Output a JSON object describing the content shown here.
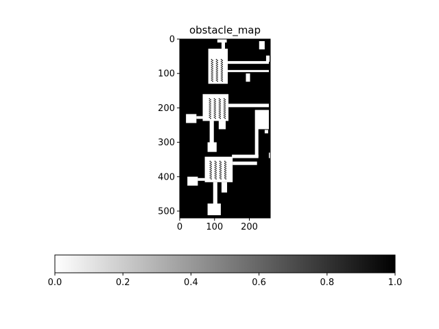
{
  "chart_data": {
    "type": "heatmap",
    "title": "obstacle_map",
    "xlabel": "",
    "ylabel": "",
    "xlim": [
      0,
      260
    ],
    "ylim": [
      520,
      0
    ],
    "x_ticks": [
      0,
      100,
      200
    ],
    "y_ticks": [
      0,
      100,
      200,
      300,
      400,
      500
    ],
    "x_tick_labels": [
      "0",
      "100",
      "200"
    ],
    "y_tick_labels": [
      "0",
      "100",
      "200",
      "300",
      "400",
      "500"
    ],
    "colormap": "gray_r",
    "background_value": 1.0,
    "free_space_value": 0.0,
    "free_regions": [
      {
        "x": [
          108,
          135
        ],
        "y": [
          0,
          10
        ]
      },
      {
        "x": [
          120,
          130
        ],
        "y": [
          10,
          28
        ]
      },
      {
        "x": [
          82,
          138
        ],
        "y": [
          28,
          130
        ]
      },
      {
        "x": [
          138,
          256
        ],
        "y": [
          64,
          72
        ]
      },
      {
        "x": [
          138,
          256
        ],
        "y": [
          90,
          96
        ]
      },
      {
        "x": [
          248,
          258
        ],
        "y": [
          48,
          66
        ]
      },
      {
        "x": [
          228,
          244
        ],
        "y": [
          6,
          30
        ]
      },
      {
        "x": [
          190,
          202
        ],
        "y": [
          100,
          124
        ]
      },
      {
        "x": [
          66,
          140
        ],
        "y": [
          160,
          238
        ]
      },
      {
        "x": [
          140,
          256
        ],
        "y": [
          188,
          198
        ]
      },
      {
        "x": [
          18,
          48
        ],
        "y": [
          218,
          244
        ]
      },
      {
        "x": [
          48,
          72
        ],
        "y": [
          224,
          232
        ]
      },
      {
        "x": [
          86,
          98
        ],
        "y": [
          238,
          312
        ]
      },
      {
        "x": [
          112,
          132
        ],
        "y": [
          238,
          262
        ]
      },
      {
        "x": [
          80,
          106
        ],
        "y": [
          300,
          328
        ]
      },
      {
        "x": [
          216,
          256
        ],
        "y": [
          206,
          262
        ]
      },
      {
        "x": [
          216,
          226
        ],
        "y": [
          262,
          342
        ]
      },
      {
        "x": [
          150,
          226
        ],
        "y": [
          336,
          346
        ]
      },
      {
        "x": [
          244,
          254
        ],
        "y": [
          264,
          274
        ]
      },
      {
        "x": [
          256,
          262
        ],
        "y": [
          330,
          346
        ]
      },
      {
        "x": [
          72,
          152
        ],
        "y": [
          342,
          416
        ]
      },
      {
        "x": [
          152,
          222
        ],
        "y": [
          356,
          366
        ]
      },
      {
        "x": [
          22,
          52
        ],
        "y": [
          400,
          426
        ]
      },
      {
        "x": [
          52,
          72
        ],
        "y": [
          404,
          412
        ]
      },
      {
        "x": [
          96,
          108
        ],
        "y": [
          416,
          484
        ]
      },
      {
        "x": [
          120,
          136
        ],
        "y": [
          416,
          446
        ]
      },
      {
        "x": [
          80,
          118
        ],
        "y": [
          478,
          512
        ]
      }
    ],
    "obstacle_rows": [
      {
        "x": [
          90,
          96
        ],
        "y": [
          58,
          122
        ]
      },
      {
        "x": [
          104,
          110
        ],
        "y": [
          58,
          122
        ]
      },
      {
        "x": [
          118,
          124
        ],
        "y": [
          58,
          122
        ]
      },
      {
        "x": [
          84,
          90
        ],
        "y": [
          172,
          232
        ]
      },
      {
        "x": [
          98,
          104
        ],
        "y": [
          172,
          232
        ]
      },
      {
        "x": [
          112,
          118
        ],
        "y": [
          172,
          232
        ]
      },
      {
        "x": [
          126,
          132
        ],
        "y": [
          172,
          232
        ]
      },
      {
        "x": [
          86,
          92
        ],
        "y": [
          354,
          406
        ]
      },
      {
        "x": [
          100,
          106
        ],
        "y": [
          354,
          406
        ]
      },
      {
        "x": [
          114,
          120
        ],
        "y": [
          354,
          406
        ]
      },
      {
        "x": [
          128,
          134
        ],
        "y": [
          354,
          406
        ]
      }
    ],
    "colorbar": {
      "orientation": "horizontal",
      "range": [
        0.0,
        1.0
      ],
      "ticks": [
        0.0,
        0.2,
        0.4,
        0.6,
        0.8,
        1.0
      ],
      "tick_labels": [
        "0.0",
        "0.2",
        "0.4",
        "0.6",
        "0.8",
        "1.0"
      ],
      "color_low": "#ffffff",
      "color_high": "#000000"
    },
    "grid": false
  }
}
